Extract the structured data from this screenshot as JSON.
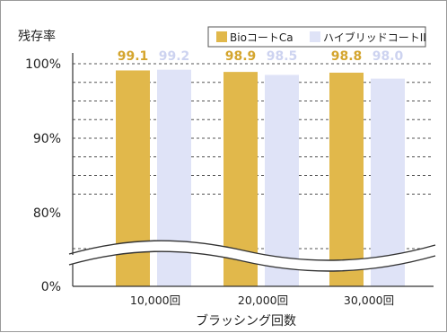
{
  "chart_data": {
    "type": "bar",
    "ylabel": "残存率",
    "xlabel": "ブラッシング回数",
    "categories": [
      "10,000回",
      "20,000回",
      "30,000回"
    ],
    "series": [
      {
        "name": "BioコートCa",
        "values": [
          99.1,
          98.9,
          98.8
        ],
        "color": "#e1b84b"
      },
      {
        "name": "ハイブリッドコートII",
        "values": [
          99.2,
          98.5,
          98.0
        ],
        "color": "#dfe3f7"
      }
    ],
    "data_labels": [
      [
        "99.1",
        "98.9",
        "98.8"
      ],
      [
        "99.2",
        "98.5",
        "98.0"
      ]
    ],
    "yticks": [
      {
        "value": 100,
        "label": "100%"
      },
      {
        "value": 90,
        "label": "90%"
      },
      {
        "value": 80,
        "label": "80%"
      },
      {
        "value": 0,
        "label": "0%"
      }
    ],
    "ylim": [
      0,
      100
    ],
    "axis_break": "between 0% and 80%",
    "grid": "dashed horizontal",
    "legend_position": "top-right"
  }
}
